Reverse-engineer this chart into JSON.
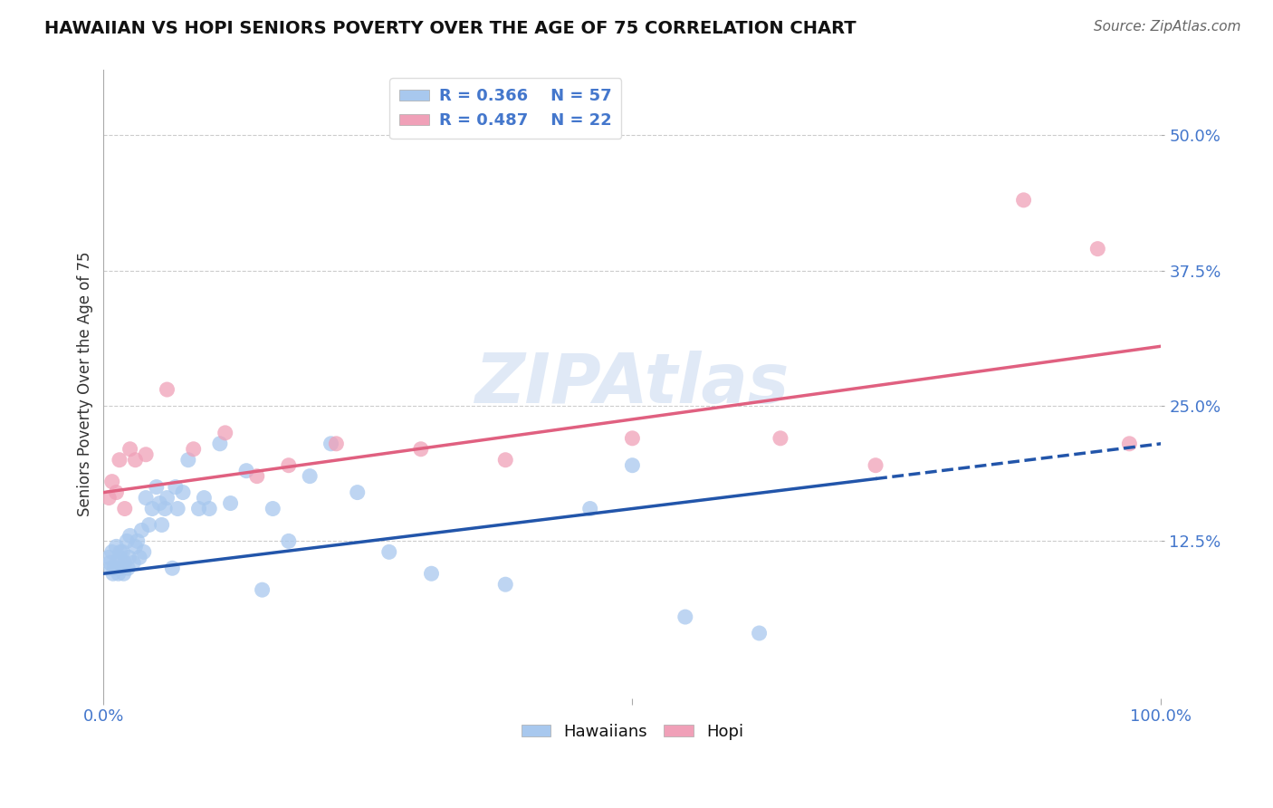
{
  "title": "HAWAIIAN VS HOPI SENIORS POVERTY OVER THE AGE OF 75 CORRELATION CHART",
  "source": "Source: ZipAtlas.com",
  "ylabel": "Seniors Poverty Over the Age of 75",
  "y_tick_positions": [
    0.125,
    0.25,
    0.375,
    0.5
  ],
  "y_tick_labels": [
    "12.5%",
    "25.0%",
    "37.5%",
    "50.0%"
  ],
  "x_range": [
    0.0,
    1.0
  ],
  "y_range": [
    -0.02,
    0.56
  ],
  "hawaiians_R": 0.366,
  "hawaiians_N": 57,
  "hopi_R": 0.487,
  "hopi_N": 22,
  "hawaiians_color": "#a8c8ee",
  "hopi_color": "#f0a0b8",
  "hawaiians_line_color": "#2255aa",
  "hopi_line_color": "#e06080",
  "hawaiians_line_start_y": 0.095,
  "hawaiians_line_end_y": 0.215,
  "hawaiians_line_x_solid_end": 0.73,
  "hopi_line_start_y": 0.17,
  "hopi_line_end_y": 0.305,
  "hawaiians_x": [
    0.005,
    0.006,
    0.007,
    0.008,
    0.009,
    0.01,
    0.012,
    0.013,
    0.014,
    0.015,
    0.016,
    0.017,
    0.018,
    0.019,
    0.02,
    0.022,
    0.023,
    0.024,
    0.025,
    0.028,
    0.03,
    0.032,
    0.034,
    0.036,
    0.038,
    0.04,
    0.043,
    0.046,
    0.05,
    0.053,
    0.055,
    0.058,
    0.06,
    0.065,
    0.068,
    0.07,
    0.075,
    0.08,
    0.09,
    0.095,
    0.1,
    0.11,
    0.12,
    0.135,
    0.15,
    0.16,
    0.175,
    0.195,
    0.215,
    0.24,
    0.27,
    0.31,
    0.38,
    0.46,
    0.5,
    0.55,
    0.62
  ],
  "hawaiians_y": [
    0.11,
    0.105,
    0.1,
    0.115,
    0.095,
    0.1,
    0.12,
    0.105,
    0.095,
    0.11,
    0.115,
    0.1,
    0.115,
    0.095,
    0.105,
    0.125,
    0.1,
    0.11,
    0.13,
    0.105,
    0.12,
    0.125,
    0.11,
    0.135,
    0.115,
    0.165,
    0.14,
    0.155,
    0.175,
    0.16,
    0.14,
    0.155,
    0.165,
    0.1,
    0.175,
    0.155,
    0.17,
    0.2,
    0.155,
    0.165,
    0.155,
    0.215,
    0.16,
    0.19,
    0.08,
    0.155,
    0.125,
    0.185,
    0.215,
    0.17,
    0.115,
    0.095,
    0.085,
    0.155,
    0.195,
    0.055,
    0.04
  ],
  "hopi_x": [
    0.005,
    0.008,
    0.012,
    0.015,
    0.02,
    0.025,
    0.03,
    0.04,
    0.06,
    0.085,
    0.115,
    0.145,
    0.175,
    0.22,
    0.3,
    0.38,
    0.5,
    0.64,
    0.73,
    0.87,
    0.94,
    0.97
  ],
  "hopi_y": [
    0.165,
    0.18,
    0.17,
    0.2,
    0.155,
    0.21,
    0.2,
    0.205,
    0.265,
    0.21,
    0.225,
    0.185,
    0.195,
    0.215,
    0.21,
    0.2,
    0.22,
    0.22,
    0.195,
    0.44,
    0.395,
    0.215
  ]
}
